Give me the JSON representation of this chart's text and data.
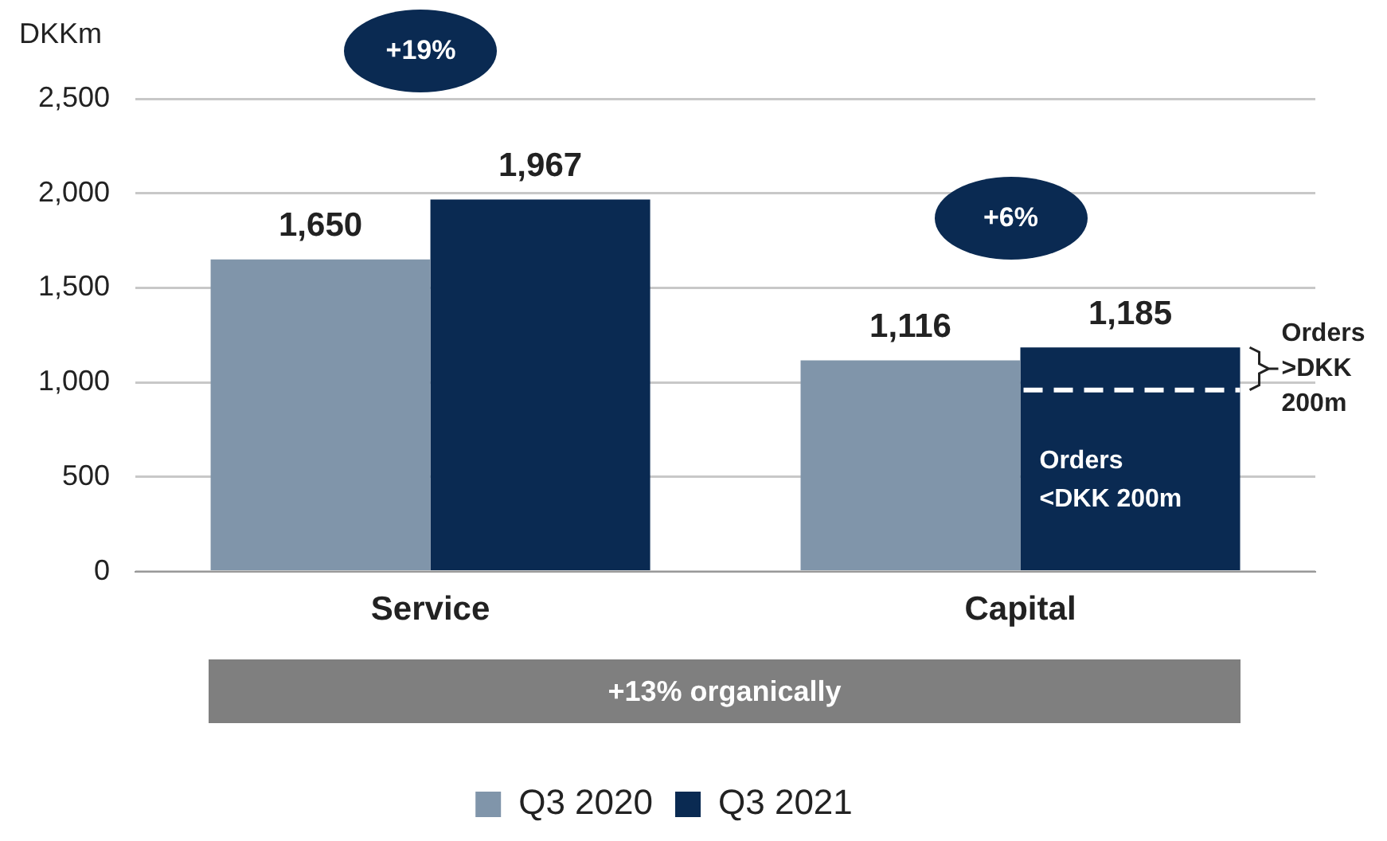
{
  "chart_data": {
    "type": "bar",
    "ylabel": "DKKm",
    "categories": [
      "Service",
      "Capital"
    ],
    "series": [
      {
        "name": "Q3 2020",
        "color": "#8095aa",
        "values": [
          1650,
          1116
        ],
        "value_labels": [
          "1,650",
          "1,116"
        ]
      },
      {
        "name": "Q3 2021",
        "color": "#0a2a52",
        "values": [
          1967,
          1185
        ],
        "value_labels": [
          "1,967",
          "1,185"
        ]
      }
    ],
    "ylim": [
      0,
      2500
    ],
    "yticks": [
      {
        "value": 0,
        "label": "0"
      },
      {
        "value": 500,
        "label": "500"
      },
      {
        "value": 1000,
        "label": "1,000"
      },
      {
        "value": 1500,
        "label": "1,500"
      },
      {
        "value": 2000,
        "label": "2,000"
      },
      {
        "value": 2500,
        "label": "2,500"
      }
    ],
    "grid": "y",
    "legend": "bottom",
    "ref_lines": [
      {
        "axis": "y",
        "value": 960,
        "label": null,
        "color": "#ffffff",
        "line_style": "dashed"
      }
    ],
    "annotations": [
      "+19%",
      "+6%",
      "+13% organically",
      "Orders >DKK 200m",
      "Orders <DKK 200m"
    ]
  }
}
